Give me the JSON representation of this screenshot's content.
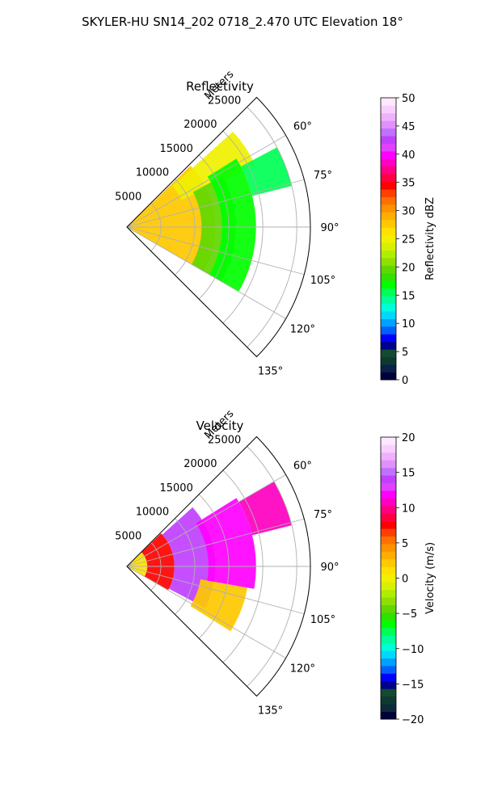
{
  "suptitle": "SKYLER-HU  SN14_202  0718_2.470 UTC Elevation 18°",
  "chart_data": [
    {
      "type": "heatmap",
      "title": "Reflectivity",
      "range_label": "Meters",
      "range_ticks": [
        5000,
        10000,
        15000,
        20000,
        25000
      ],
      "range_tick_labels": [
        "5000",
        "10000",
        "15000",
        "20000",
        "25000"
      ],
      "rlim": [
        0,
        27000
      ],
      "azimuth_ticks": [
        60,
        75,
        90,
        105,
        120,
        135
      ],
      "azimuth_tick_labels": [
        "60°",
        "75°",
        "90°",
        "105°",
        "120°",
        "135°"
      ],
      "azimuth_range": [
        45,
        135
      ],
      "grid": true,
      "colorbar": {
        "label": "Reflectivity dBZ",
        "min": 0,
        "max": 50,
        "ticks": [
          0,
          5,
          10,
          15,
          20,
          25,
          30,
          35,
          40,
          45,
          50
        ],
        "tick_labels": [
          "0",
          "5",
          "10",
          "15",
          "20",
          "25",
          "30",
          "35",
          "40",
          "45",
          "50"
        ],
        "colors": [
          "#00003a",
          "#0a1f4a",
          "#0d3a2f",
          "#144a30",
          "#00008c",
          "#0000ff",
          "#0060ff",
          "#00a0ff",
          "#00d8ff",
          "#00ffd8",
          "#00ff9a",
          "#00ff55",
          "#00ff00",
          "#30e000",
          "#60d800",
          "#8ee000",
          "#b0ee00",
          "#d8f000",
          "#f0f000",
          "#ffe000",
          "#ffc800",
          "#ffae00",
          "#ff9000",
          "#ff7000",
          "#ff4000",
          "#ff0000",
          "#ff0040",
          "#ff0080",
          "#ff00c0",
          "#ff00ff",
          "#e040ff",
          "#c040ff",
          "#c070ff",
          "#e090ff",
          "#f0b0ff",
          "#f8d0ff",
          "#fce8ff"
        ]
      },
      "echo_regions": [
        {
          "az": [
            46,
            120
          ],
          "r": [
            0,
            13000
          ],
          "value": 28
        },
        {
          "az": [
            48,
            64
          ],
          "r": [
            9000,
            21000
          ],
          "value": 25
        },
        {
          "az": [
            62,
            120
          ],
          "r": [
            11000,
            16000
          ],
          "value": 19
        },
        {
          "az": [
            58,
            120
          ],
          "r": [
            14000,
            19000
          ],
          "value": 17
        },
        {
          "az": [
            62,
            76
          ],
          "r": [
            19000,
            25000
          ],
          "value": 16
        }
      ]
    },
    {
      "type": "heatmap",
      "title": "Velocity",
      "range_label": "Meters",
      "range_ticks": [
        5000,
        10000,
        15000,
        20000,
        25000
      ],
      "range_tick_labels": [
        "5000",
        "10000",
        "15000",
        "20000",
        "25000"
      ],
      "rlim": [
        0,
        27000
      ],
      "azimuth_ticks": [
        60,
        75,
        90,
        105,
        120,
        135
      ],
      "azimuth_tick_labels": [
        "60°",
        "75°",
        "90°",
        "105°",
        "120°",
        "135°"
      ],
      "azimuth_range": [
        45,
        135
      ],
      "grid": true,
      "colorbar": {
        "label": "Velocity (m/s)",
        "min": -20,
        "max": 20,
        "ticks": [
          -20,
          -15,
          -10,
          -5,
          0,
          5,
          10,
          15,
          20
        ],
        "tick_labels": [
          "−20",
          "−15",
          "−10",
          "−5",
          "0",
          "5",
          "10",
          "15",
          "20"
        ],
        "colors": [
          "#00003a",
          "#0d2a3a",
          "#0d3a2f",
          "#144a30",
          "#00008c",
          "#0000ff",
          "#0060ff",
          "#00a0ff",
          "#00d8ff",
          "#00ffd8",
          "#00ff9a",
          "#00ff55",
          "#00ff00",
          "#30e000",
          "#60d800",
          "#8ee000",
          "#b0ee00",
          "#d8f000",
          "#f0f000",
          "#ffe000",
          "#ffc800",
          "#ffae00",
          "#ff9000",
          "#ff7000",
          "#ff4000",
          "#ff0000",
          "#ff0040",
          "#ff0080",
          "#ff00c0",
          "#ff00ff",
          "#e040ff",
          "#c040ff",
          "#c070ff",
          "#e090ff",
          "#f0b0ff",
          "#f8d0ff",
          "#fce8ff"
        ]
      },
      "echo_regions": [
        {
          "az": [
            46,
            120
          ],
          "r": [
            0,
            3000
          ],
          "value": 1
        },
        {
          "az": [
            46,
            120
          ],
          "r": [
            3000,
            7000
          ],
          "value": 8
        },
        {
          "az": [
            48,
            118
          ],
          "r": [
            7000,
            13000
          ],
          "value": 14
        },
        {
          "az": [
            100,
            122
          ],
          "r": [
            11000,
            18000
          ],
          "value": 2
        },
        {
          "az": [
            58,
            100
          ],
          "r": [
            12000,
            19000
          ],
          "value": 12
        },
        {
          "az": [
            60,
            76
          ],
          "r": [
            19000,
            25000
          ],
          "value": 11
        }
      ]
    }
  ]
}
